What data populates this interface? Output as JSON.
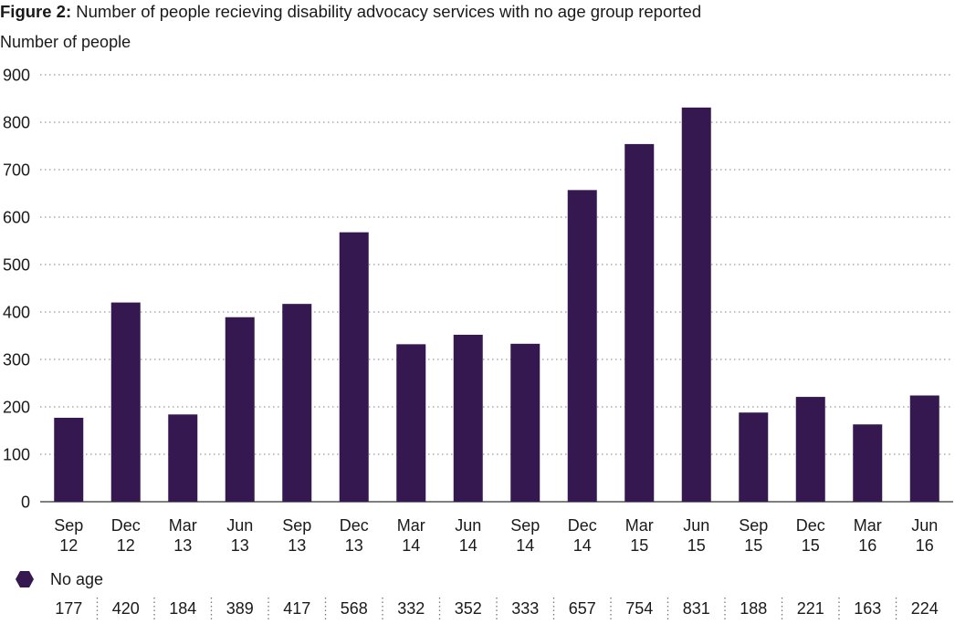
{
  "title": {
    "prefix": "Figure 2:",
    "text": "Number of people recieving disability advocacy services with no age group reported"
  },
  "colors": {
    "bar": "#34184f",
    "grid": "#9a9a9a",
    "axis": "#333333",
    "separator": "#777777"
  },
  "chart_data": {
    "type": "bar",
    "title": "Number of people recieving disability advocacy services with no age group reported",
    "xlabel": "",
    "ylabel": "Number of people",
    "ylim": [
      0,
      900
    ],
    "yticks": [
      0,
      100,
      200,
      300,
      400,
      500,
      600,
      700,
      800,
      900
    ],
    "grid": true,
    "legend_position": "bottom-left",
    "categories": [
      [
        "Sep",
        "12"
      ],
      [
        "Dec",
        "12"
      ],
      [
        "Mar",
        "13"
      ],
      [
        "Jun",
        "13"
      ],
      [
        "Sep",
        "13"
      ],
      [
        "Dec",
        "13"
      ],
      [
        "Mar",
        "14"
      ],
      [
        "Jun",
        "14"
      ],
      [
        "Sep",
        "14"
      ],
      [
        "Dec",
        "14"
      ],
      [
        "Mar",
        "15"
      ],
      [
        "Jun",
        "15"
      ],
      [
        "Sep",
        "15"
      ],
      [
        "Dec",
        "15"
      ],
      [
        "Mar",
        "16"
      ],
      [
        "Jun",
        "16"
      ]
    ],
    "series": [
      {
        "name": "No age",
        "values": [
          177,
          420,
          184,
          389,
          417,
          568,
          332,
          352,
          333,
          657,
          754,
          831,
          188,
          221,
          163,
          224
        ]
      }
    ]
  }
}
